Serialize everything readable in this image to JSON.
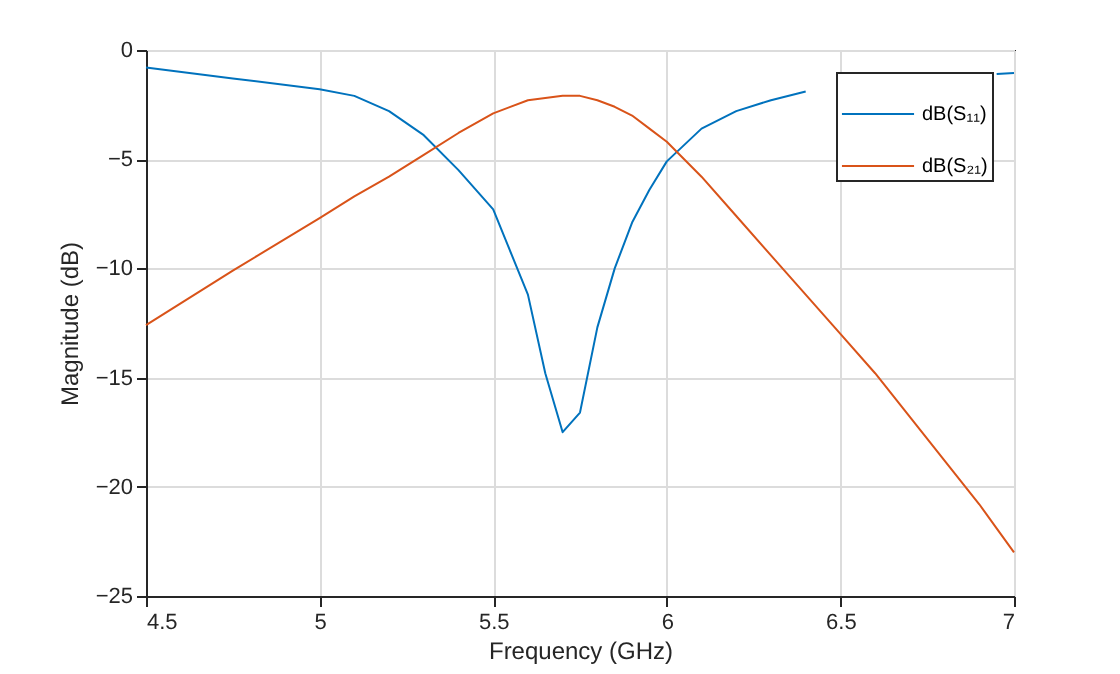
{
  "chart_data": {
    "type": "line",
    "xlabel": "Frequency (GHz)",
    "ylabel": "Magnitude (dB)",
    "x": [
      4.5,
      4.75,
      5,
      5.1,
      5.2,
      5.3,
      5.4,
      5.5,
      5.6,
      5.65,
      5.7,
      5.75,
      5.8,
      5.85,
      5.9,
      5.95,
      6,
      6.1,
      6.2,
      6.3,
      6.4,
      6.5,
      6.6,
      6.7,
      6.8,
      6.9,
      6.95,
      7
    ],
    "series": [
      {
        "name": "dB(S₁₁)",
        "color": "#0072bd",
        "values": [
          -0.8,
          -1.3,
          -1.8,
          -2.1,
          -2.8,
          -3.9,
          -5.5,
          -7.3,
          -11.2,
          -14.8,
          -17.5,
          -16.6,
          -12.7,
          -10,
          -7.9,
          -6.4,
          -5.1,
          -3.6,
          -2.8,
          -2.3,
          -1.9,
          null,
          null,
          null,
          null,
          null,
          -1.1,
          -1.05
        ]
      },
      {
        "name": "dB(S₂₁)",
        "color": "#d95319",
        "values": [
          -12.6,
          -10.1,
          -7.7,
          -6.7,
          -5.8,
          -4.8,
          -3.8,
          -2.9,
          -2.3,
          -2.2,
          -2.1,
          -2.1,
          -2.3,
          -2.6,
          -3,
          -3.6,
          -4.2,
          -5.8,
          -7.6,
          -9.4,
          -11.2,
          -13,
          -14.8,
          -16.8,
          -18.8,
          -20.8,
          -21.9,
          -23
        ]
      }
    ],
    "xlim": [
      4.5,
      7
    ],
    "xticks": [
      4.5,
      5,
      5.5,
      6,
      6.5,
      7
    ],
    "ylim": [
      -25,
      0
    ],
    "yticks": [
      -25,
      -20,
      -15,
      -10,
      -5,
      0
    ],
    "grid": true,
    "legend": "top right"
  }
}
